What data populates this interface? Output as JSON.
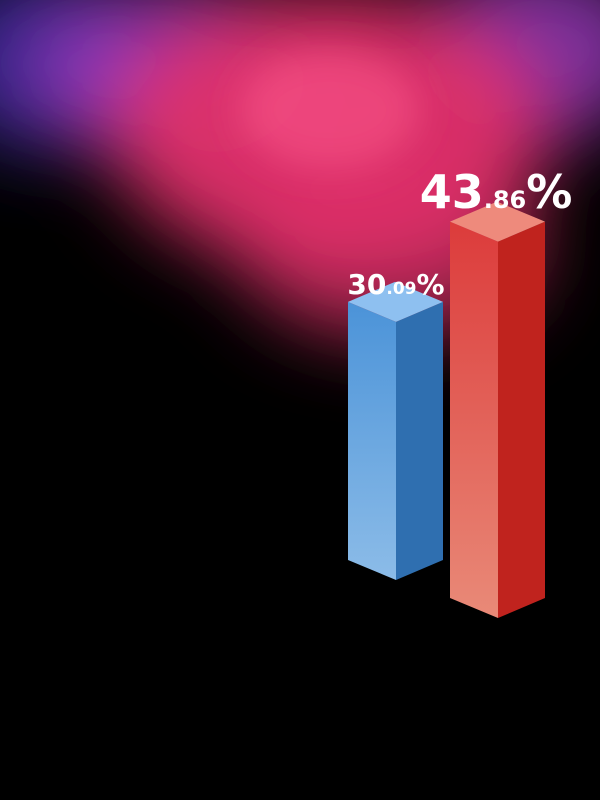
{
  "chart_data": {
    "type": "bar",
    "categories": [
      "",
      ""
    ],
    "values": [
      30.09,
      43.86
    ],
    "value_labels": [
      {
        "int": "30",
        "dec": ".09",
        "unit": "%"
      },
      {
        "int": "43",
        "dec": ".86",
        "unit": "%"
      }
    ],
    "colors": {
      "bar_1_front_top": "#4b93d8",
      "bar_1_front_bottom": "#8cbce8",
      "bar_1_side": "#2f6fb0",
      "bar_1_top": "#8ec0f0",
      "bar_2_front_top": "#dc3b3b",
      "bar_2_front_bottom": "#e98a78",
      "bar_2_side": "#c0231e",
      "bar_2_top": "#ee8a7c",
      "smoke_magenta": "#e0306a",
      "smoke_purple": "#9a3cc0",
      "smoke_blue": "#3a2aa0"
    },
    "title": "",
    "xlabel": "",
    "ylabel": "",
    "grid": false,
    "legend": "none",
    "style": "3d-isometric-bars"
  }
}
